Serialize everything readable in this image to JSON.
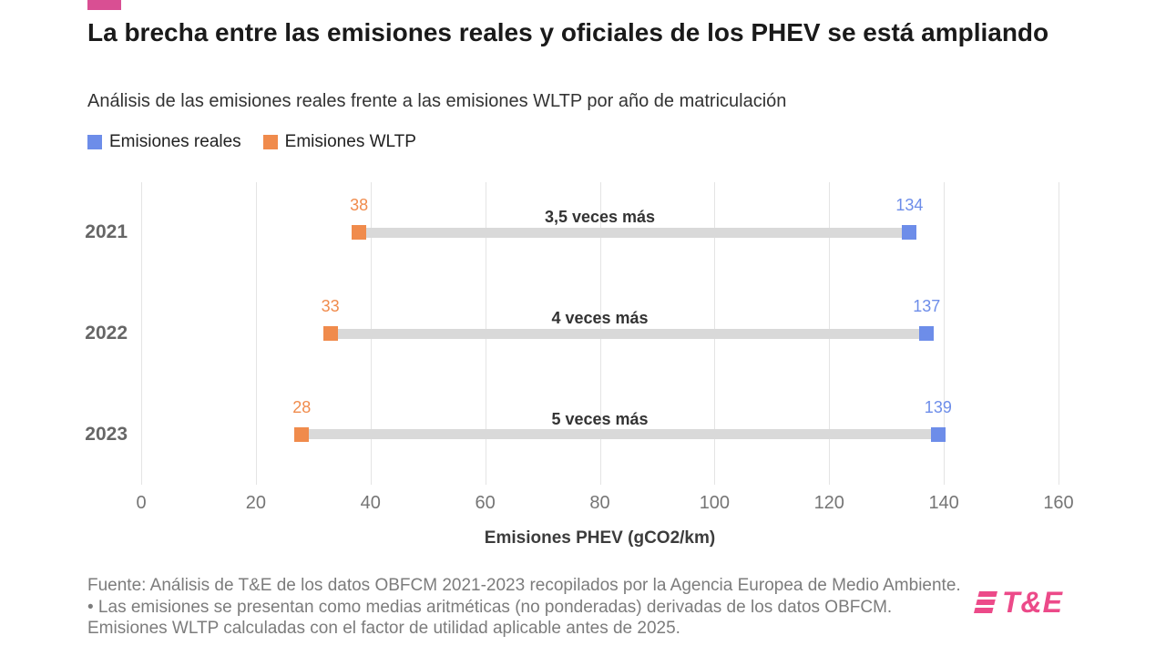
{
  "header": {
    "title": "La brecha entre las emisiones reales y oficiales de los PHEV se está ampliando",
    "subtitle": "Análisis de las emisiones reales frente a las emisiones WLTP por año de matriculación"
  },
  "legend": [
    {
      "label": "Emisiones reales",
      "color": "#6d8de9"
    },
    {
      "label": "Emisiones WLTP",
      "color": "#f08b4c"
    }
  ],
  "chart_data": {
    "type": "dumbbell",
    "categories": [
      "2021",
      "2022",
      "2023"
    ],
    "series": [
      {
        "name": "Emisiones reales",
        "color": "#6d8de9",
        "values": [
          134,
          137,
          139
        ]
      },
      {
        "name": "Emisiones WLTP",
        "color": "#f08b4c",
        "values": [
          38,
          33,
          28
        ]
      }
    ],
    "annotations": [
      "3,5 veces más",
      "4 veces más",
      "5 veces más"
    ],
    "title": "La brecha entre las emisiones reales y oficiales de los PHEV se está ampliando",
    "xlabel": "Emisiones PHEV (gCO2/km)",
    "ylabel": "",
    "xlim": [
      0,
      160
    ],
    "xticks": [
      0,
      20,
      40,
      60,
      80,
      100,
      120,
      140,
      160
    ],
    "grid": "vertical",
    "legend_position": "top-left",
    "connector_color": "#d9d9d9"
  },
  "footer": {
    "source": "Fuente: Análisis de T&E de los datos OBFCM 2021-2023 recopilados por la Agencia Europea de Medio Ambiente. • Las emisiones se presentan como medias aritméticas (no ponderadas) derivadas de los datos OBFCM. Emisiones WLTP calculadas con el factor de utilidad aplicable antes de 2025.",
    "logo": "T&E"
  },
  "accent_color": "#d94f93",
  "brand_color": "#ec4a89"
}
